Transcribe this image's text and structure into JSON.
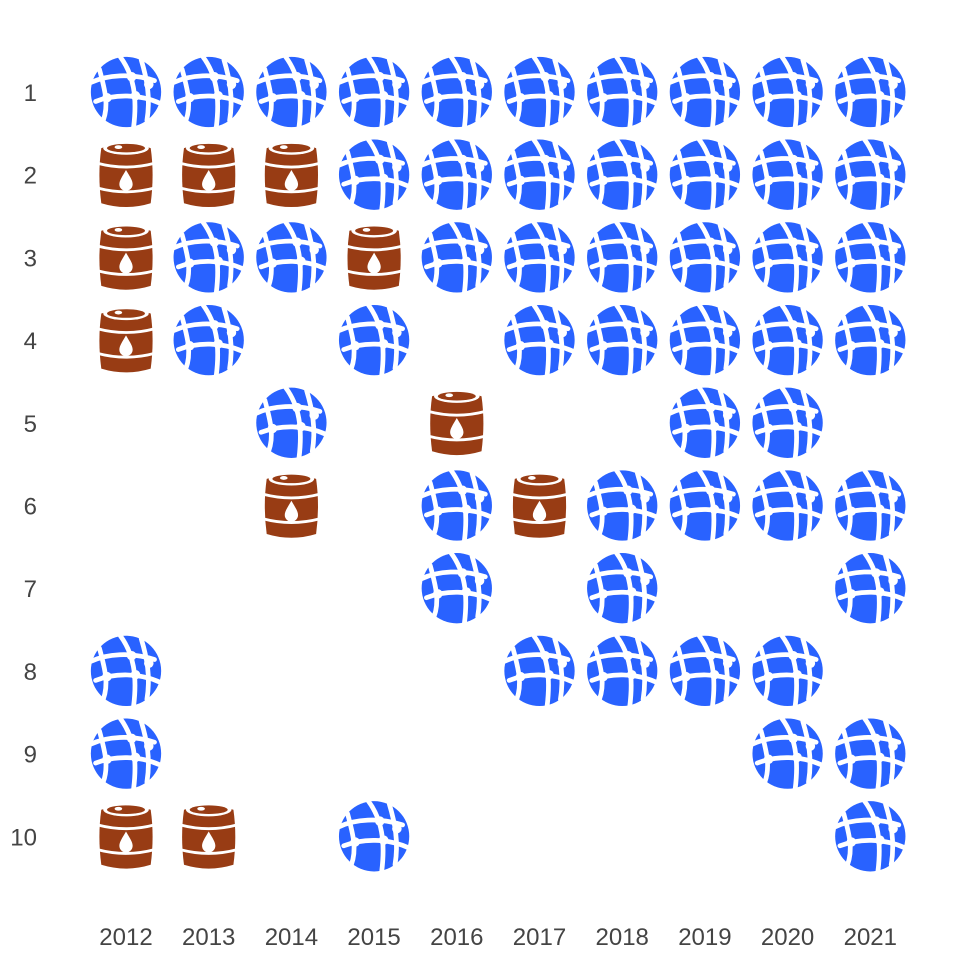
{
  "chart_data": {
    "type": "scatter",
    "chart_style": "icon-matrix",
    "x_categories": [
      "2012",
      "2013",
      "2014",
      "2015",
      "2016",
      "2017",
      "2018",
      "2019",
      "2020",
      "2021"
    ],
    "y_categories": [
      "1",
      "2",
      "3",
      "4",
      "5",
      "6",
      "7",
      "8",
      "9",
      "10"
    ],
    "icon_types": {
      "globe": {
        "icon": "globe-network-icon",
        "color": "#2962ff"
      },
      "oil": {
        "icon": "oil-barrel-icon",
        "color": "#983c14"
      }
    },
    "grid": [
      [
        "globe",
        "globe",
        "globe",
        "globe",
        "globe",
        "globe",
        "globe",
        "globe",
        "globe",
        "globe"
      ],
      [
        "oil",
        "oil",
        "oil",
        "globe",
        "globe",
        "globe",
        "globe",
        "globe",
        "globe",
        "globe"
      ],
      [
        "oil",
        "globe",
        "globe",
        "oil",
        "globe",
        "globe",
        "globe",
        "globe",
        "globe",
        "globe"
      ],
      [
        "oil",
        "globe",
        null,
        "globe",
        null,
        "globe",
        "globe",
        "globe",
        "globe",
        "globe"
      ],
      [
        null,
        null,
        "globe",
        null,
        "oil",
        null,
        null,
        "globe",
        "globe",
        null
      ],
      [
        null,
        null,
        "oil",
        null,
        "globe",
        "oil",
        "globe",
        "globe",
        "globe",
        "globe"
      ],
      [
        null,
        null,
        null,
        null,
        "globe",
        null,
        "globe",
        null,
        null,
        "globe"
      ],
      [
        "globe",
        null,
        null,
        null,
        null,
        "globe",
        "globe",
        "globe",
        "globe",
        null
      ],
      [
        "globe",
        null,
        null,
        null,
        null,
        null,
        null,
        null,
        "globe",
        "globe"
      ],
      [
        "oil",
        "oil",
        null,
        "globe",
        null,
        null,
        null,
        null,
        null,
        "globe"
      ]
    ],
    "legend": "none",
    "grid_lines": false
  }
}
